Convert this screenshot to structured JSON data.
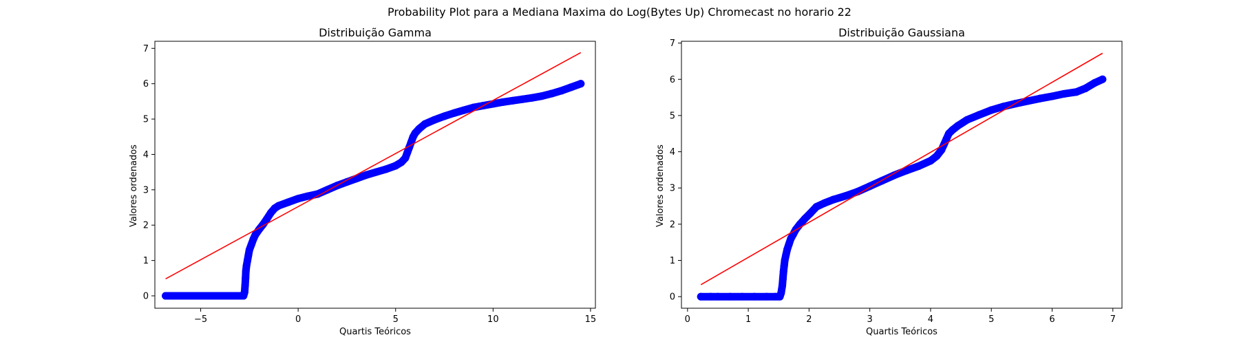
{
  "figure": {
    "suptitle": "Probability Plot para a Mediana Maxima do Log(Bytes Up) Chromecast no horario 22"
  },
  "chart_data": [
    {
      "type": "scatter",
      "title": "Distribuição Gamma",
      "xlabel": "Quartis Teóricos",
      "ylabel": "Valores ordenados",
      "xlim": [
        -7.35,
        15.25
      ],
      "ylim": [
        -0.35,
        7.2
      ],
      "xticks": [
        -5,
        0,
        5,
        10,
        15
      ],
      "yticks": [
        0,
        1,
        2,
        3,
        4,
        5,
        6,
        7
      ],
      "grid": false,
      "colors": {
        "points": "#0000ff",
        "fit_line": "#ff0000"
      },
      "series": [
        {
          "kind": "points",
          "x": [
            -6.8,
            -6.3,
            -6.0,
            -5.5,
            -5.0,
            -4.5,
            -4.0,
            -3.5,
            -3.0,
            -2.8,
            -2.75,
            -2.72,
            -2.7,
            -2.68,
            -2.65,
            -2.6,
            -2.55,
            -2.5,
            -2.4,
            -2.3,
            -2.2,
            -2.0,
            -1.8,
            -1.6,
            -1.4,
            -1.2,
            -1.0,
            -0.5,
            0.0,
            0.5,
            1.0,
            1.5,
            2.0,
            2.5,
            3.0,
            3.5,
            4.0,
            4.5,
            5.0,
            5.3,
            5.5,
            5.6,
            5.7,
            5.8,
            5.9,
            6.0,
            6.2,
            6.5,
            7.0,
            7.5,
            8.0,
            8.5,
            9.0,
            9.5,
            10.0,
            10.5,
            11.0,
            11.5,
            12.0,
            12.5,
            13.0,
            13.5,
            14.0,
            14.5
          ],
          "y": [
            0.0,
            0.0,
            0.0,
            0.0,
            0.0,
            0.0,
            0.0,
            0.0,
            0.0,
            0.0,
            0.1,
            0.3,
            0.5,
            0.7,
            0.85,
            1.0,
            1.15,
            1.3,
            1.45,
            1.6,
            1.72,
            1.88,
            2.02,
            2.18,
            2.35,
            2.48,
            2.55,
            2.65,
            2.75,
            2.82,
            2.88,
            3.0,
            3.12,
            3.22,
            3.32,
            3.42,
            3.5,
            3.58,
            3.68,
            3.78,
            3.9,
            4.05,
            4.2,
            4.35,
            4.5,
            4.6,
            4.72,
            4.86,
            4.98,
            5.08,
            5.17,
            5.25,
            5.33,
            5.38,
            5.43,
            5.48,
            5.52,
            5.56,
            5.6,
            5.65,
            5.72,
            5.8,
            5.9,
            6.0
          ]
        },
        {
          "kind": "line",
          "x": [
            -6.8,
            14.5
          ],
          "y": [
            0.48,
            6.88
          ]
        }
      ]
    },
    {
      "type": "scatter",
      "title": "Distribuição Gaussiana",
      "xlabel": "Quartis Teóricos",
      "ylabel": "Valores ordenados",
      "xlim": [
        -0.1,
        7.15
      ],
      "ylim": [
        -0.32,
        7.05
      ],
      "xticks": [
        0,
        1,
        2,
        3,
        4,
        5,
        6,
        7
      ],
      "yticks": [
        0,
        1,
        2,
        3,
        4,
        5,
        6,
        7
      ],
      "grid": false,
      "colors": {
        "points": "#0000ff",
        "fit_line": "#ff0000"
      },
      "series": [
        {
          "kind": "points",
          "x": [
            0.22,
            0.38,
            0.5,
            0.7,
            0.9,
            1.1,
            1.3,
            1.45,
            1.52,
            1.54,
            1.56,
            1.57,
            1.58,
            1.59,
            1.6,
            1.62,
            1.64,
            1.67,
            1.7,
            1.74,
            1.78,
            1.85,
            1.93,
            2.02,
            2.12,
            2.25,
            2.4,
            2.6,
            2.8,
            3.0,
            3.2,
            3.4,
            3.6,
            3.8,
            4.0,
            4.1,
            4.18,
            4.22,
            4.26,
            4.3,
            4.36,
            4.45,
            4.6,
            4.8,
            5.0,
            5.2,
            5.4,
            5.6,
            5.8,
            6.0,
            6.2,
            6.4,
            6.55,
            6.7,
            6.83
          ],
          "y": [
            0.0,
            0.0,
            0.0,
            0.0,
            0.0,
            0.0,
            0.0,
            0.0,
            0.0,
            0.1,
            0.3,
            0.5,
            0.7,
            0.85,
            1.0,
            1.15,
            1.3,
            1.45,
            1.6,
            1.72,
            1.85,
            2.0,
            2.15,
            2.3,
            2.48,
            2.58,
            2.68,
            2.78,
            2.9,
            3.05,
            3.2,
            3.35,
            3.48,
            3.6,
            3.75,
            3.88,
            4.05,
            4.2,
            4.35,
            4.5,
            4.6,
            4.72,
            4.88,
            5.02,
            5.15,
            5.25,
            5.33,
            5.4,
            5.47,
            5.53,
            5.6,
            5.65,
            5.75,
            5.9,
            6.0
          ]
        },
        {
          "kind": "line",
          "x": [
            0.22,
            6.83
          ],
          "y": [
            0.33,
            6.72
          ]
        }
      ]
    }
  ]
}
